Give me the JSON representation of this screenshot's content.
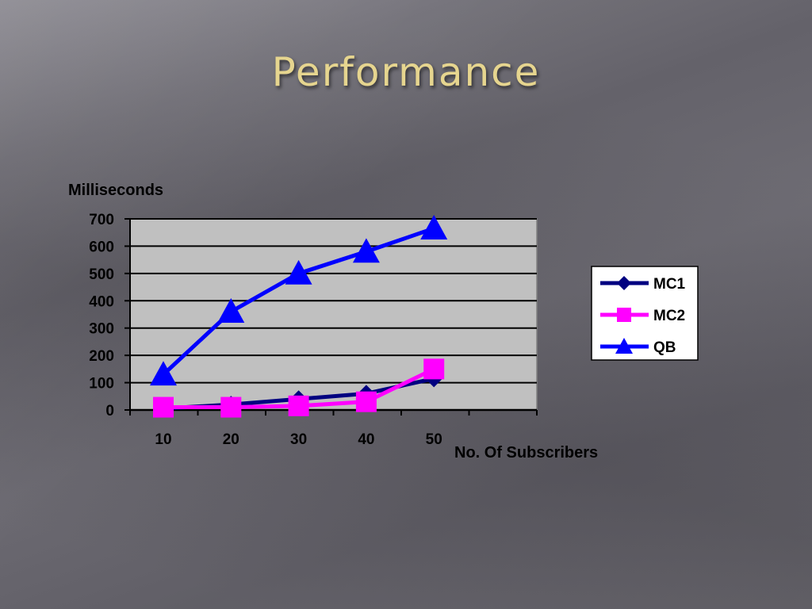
{
  "slide": {
    "title": "Performance"
  },
  "colors": {
    "plot_background": "#c0c0c0",
    "gridline": "#000000"
  },
  "chart_data": {
    "type": "line",
    "title": "",
    "ylabel": "Milliseconds",
    "xlabel": "No. Of Subscribers",
    "categories": [
      "10",
      "20",
      "30",
      "40",
      "50"
    ],
    "ylim": [
      0,
      700
    ],
    "yticks": [
      0,
      100,
      200,
      300,
      400,
      500,
      600,
      700
    ],
    "grid": true,
    "legend_position": "right",
    "series": [
      {
        "name": "MC1",
        "color": "#000080",
        "marker": "diamond",
        "values": [
          5,
          20,
          40,
          60,
          115
        ]
      },
      {
        "name": "MC2",
        "color": "#ff00ff",
        "marker": "square",
        "values": [
          10,
          10,
          15,
          30,
          150
        ]
      },
      {
        "name": "QB",
        "color": "#0000ff",
        "marker": "triangle",
        "values": [
          130,
          360,
          500,
          580,
          665
        ]
      }
    ]
  }
}
